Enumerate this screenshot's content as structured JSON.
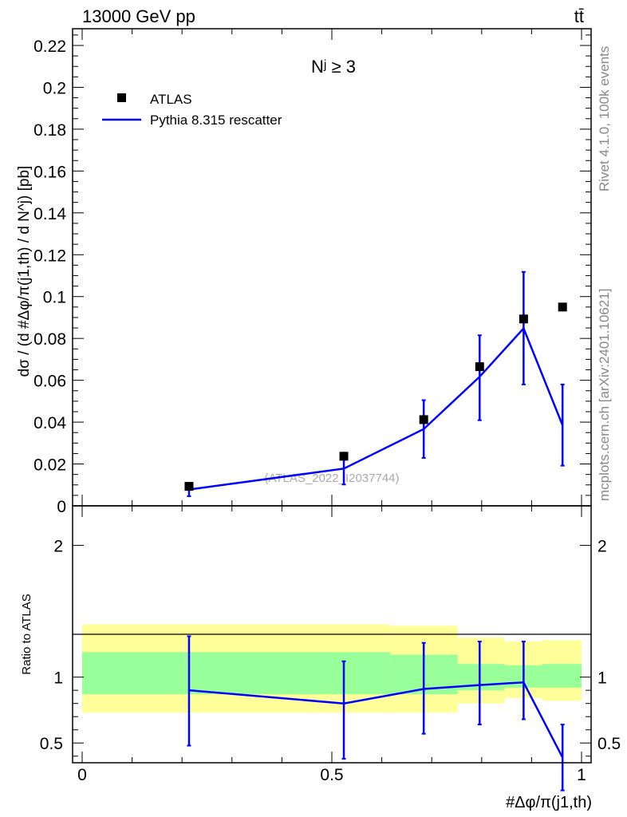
{
  "header": {
    "left": "13000 GeV pp",
    "right": "tt̄"
  },
  "side_text": {
    "top": "Rivet 4.1.0,  100k events",
    "bottom": "mcplots.cern.ch [arXiv:2401.10621]"
  },
  "watermark": "(ATLAS_2022_I2037744)",
  "panel_title": "Nʲ ≥ 3",
  "colors": {
    "mc": "#0000ff",
    "data": "#000000",
    "band_inner": "#99ff99",
    "band_outer": "#ffff99"
  },
  "chart_data": [
    {
      "type": "scatter",
      "panel": "main",
      "title": "N^j ≥ 3",
      "xlabel": "#Δφ/π(j1,th)",
      "ylabel": "dσ / (d #Δφ/π(j1,th) / d N^j) [pb]",
      "xlim": [
        0,
        1
      ],
      "ylim": [
        0,
        0.228
      ],
      "y_ticks": [
        0,
        0.02,
        0.04,
        0.06,
        0.08,
        0.1,
        0.12,
        0.14,
        0.16,
        0.18,
        0.2,
        0.22
      ],
      "y_tick_labels": [
        "0",
        "0.02",
        "0.04",
        "0.06",
        "0.08",
        "0.1",
        "0.12",
        "0.14",
        "0.16",
        "0.18",
        "0.2",
        "0.22"
      ],
      "legend": [
        "ATLAS",
        "Pythia 8.315 rescatter"
      ],
      "legend_position": "top-left",
      "series": [
        {
          "name": "ATLAS",
          "style": "markers",
          "x": [
            0.214,
            0.524,
            0.684,
            0.796,
            0.884,
            0.962
          ],
          "y": [
            0.0093,
            0.0237,
            0.0412,
            0.0665,
            0.0893,
            0.095
          ]
        },
        {
          "name": "Pythia 8.315 rescatter",
          "style": "line",
          "x": [
            0.214,
            0.524,
            0.684,
            0.796,
            0.884,
            0.962
          ],
          "y": [
            0.0078,
            0.0178,
            0.0367,
            0.0617,
            0.0848,
            0.0385
          ],
          "err_up": [
            0.0032,
            0.0076,
            0.0138,
            0.0198,
            0.027,
            0.0195
          ],
          "err_down": [
            0.0032,
            0.0076,
            0.0138,
            0.0208,
            0.0268,
            0.0193
          ]
        }
      ]
    },
    {
      "type": "line",
      "panel": "ratio",
      "ylabel": "Ratio to ATLAS",
      "xlabel": "#Δφ/π(j1,th)",
      "xlim": [
        0,
        1
      ],
      "ylim": [
        0.35,
        2.3
      ],
      "x_ticks": [
        0,
        0.5,
        1
      ],
      "x_tick_labels": [
        "0",
        "0.5",
        "1"
      ],
      "y_ticks": [
        0.5,
        1,
        2
      ],
      "y_tick_labels": [
        "0.5",
        "1",
        "2"
      ],
      "bands": {
        "edges": [
          0,
          0.617,
          0.752,
          0.846,
          0.921,
          1
        ],
        "inner_low": [
          0.87,
          0.87,
          0.9,
          0.92,
          0.92,
          0.92
        ],
        "inner_high": [
          1.19,
          1.17,
          1.1,
          1.09,
          1.1,
          1.1
        ],
        "outer_low": [
          0.73,
          0.73,
          0.8,
          0.84,
          0.82,
          0.88
        ],
        "outer_high": [
          1.4,
          1.39,
          1.3,
          1.27,
          1.28,
          1.22
        ]
      },
      "series": [
        {
          "name": "Pythia 8.315 rescatter",
          "x": [
            0.214,
            0.524,
            0.684,
            0.796,
            0.884,
            0.962
          ],
          "y": [
            0.9,
            0.8,
            0.91,
            0.94,
            0.96,
            0.39
          ],
          "err_up": [
            0.41,
            0.32,
            0.35,
            0.33,
            0.31,
            0.25
          ],
          "err_down": [
            0.42,
            0.42,
            0.34,
            0.3,
            0.28,
            0.25
          ]
        }
      ]
    }
  ]
}
